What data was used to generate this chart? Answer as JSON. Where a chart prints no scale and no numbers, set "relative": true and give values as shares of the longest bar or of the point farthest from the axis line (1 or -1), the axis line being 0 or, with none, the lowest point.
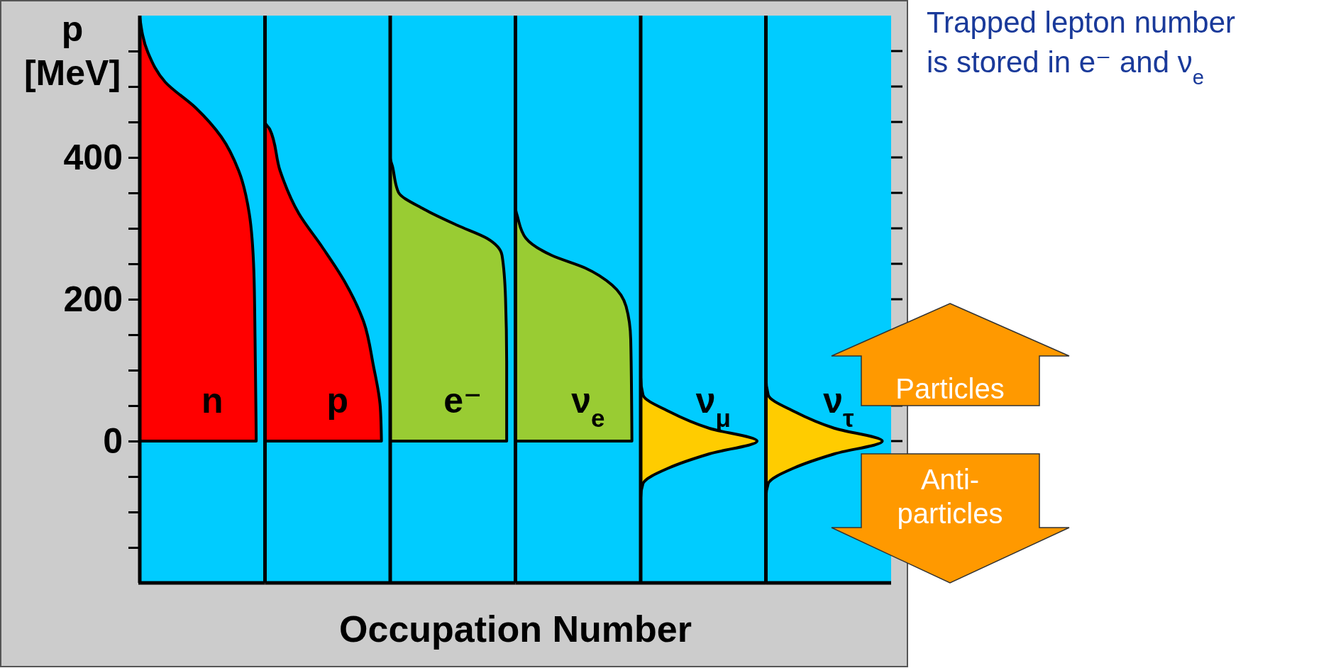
{
  "chart_data": [
    {
      "type": "area",
      "orientation": "horizontal",
      "relative": true,
      "title": "n",
      "xlabel": "Occupation Number",
      "ylabel": "p [MeV]",
      "ylim": [
        -200,
        600
      ],
      "color": "#ff0000",
      "yticks": [
        {
          "value": -150,
          "label": null
        },
        {
          "value": -100,
          "label": null
        },
        {
          "value": -50,
          "label": null
        },
        0,
        {
          "value": 50,
          "label": null
        },
        {
          "value": 100,
          "label": null
        },
        {
          "value": 150,
          "label": null
        },
        200,
        {
          "value": 250,
          "label": null
        },
        {
          "value": 300,
          "label": null
        },
        {
          "value": 350,
          "label": null
        },
        400,
        {
          "value": 450,
          "label": null
        },
        {
          "value": 500,
          "label": null
        },
        {
          "value": 550,
          "label": null
        }
      ],
      "x": [
        0,
        143,
        238,
        321,
        381,
        429,
        470,
        506,
        548,
        598
      ],
      "values": [
        1,
        0.99,
        0.98,
        0.94,
        0.85,
        0.7,
        0.48,
        0.22,
        0.07,
        0
      ]
    },
    {
      "type": "area",
      "orientation": "horizontal",
      "relative": true,
      "title": "p",
      "ylim": [
        -200,
        600
      ],
      "color": "#ff0000",
      "x": [
        0,
        48,
        107,
        167,
        226,
        274,
        321,
        381,
        440,
        450,
        598
      ],
      "values": [
        1,
        0.99,
        0.93,
        0.85,
        0.68,
        0.49,
        0.29,
        0.13,
        0.04,
        0,
        0
      ]
    },
    {
      "type": "area",
      "orientation": "horizontal",
      "relative": true,
      "title": "e⁻",
      "ylim": [
        -200,
        600
      ],
      "color": "#99cc33",
      "x": [
        0,
        107,
        202,
        262,
        286,
        304,
        327,
        351,
        387,
        400,
        598
      ],
      "values": [
        1,
        1,
        0.99,
        0.96,
        0.83,
        0.58,
        0.29,
        0.07,
        0.02,
        0,
        0
      ]
    },
    {
      "type": "area",
      "orientation": "horizontal",
      "relative": true,
      "title": "ν$_{e}$",
      "ylim": [
        -200,
        600
      ],
      "color": "#99cc33",
      "x": [
        0,
        143,
        190,
        220,
        244,
        262,
        286,
        315,
        330,
        598
      ],
      "values": [
        1,
        0.99,
        0.95,
        0.83,
        0.6,
        0.31,
        0.09,
        0.02,
        0,
        0
      ]
    },
    {
      "type": "area",
      "orientation": "horizontal",
      "relative": true,
      "title": "ν$_{μ}$",
      "ylim": [
        -200,
        600
      ],
      "color": "#ffcc00",
      "x": [
        -200,
        -80,
        -60,
        -38,
        -18,
        0,
        18,
        42,
        65,
        90,
        598
      ],
      "values": [
        0,
        0,
        0.02,
        0.24,
        0.59,
        1,
        0.59,
        0.24,
        0.02,
        0,
        0
      ]
    },
    {
      "type": "area",
      "orientation": "horizontal",
      "relative": true,
      "title": "ν$_{τ}$",
      "ylim": [
        -200,
        600
      ],
      "color": "#ffcc00",
      "annotations": [
        "Trapped lepton number is stored in e⁻ and ν$_{e}$",
        "Particles",
        "Anti-particles"
      ],
      "x": [
        -200,
        -80,
        -60,
        -38,
        -18,
        0,
        18,
        42,
        65,
        90,
        598
      ],
      "values": [
        0,
        0,
        0.02,
        0.24,
        0.59,
        1,
        0.59,
        0.24,
        0.02,
        0,
        0
      ]
    }
  ]
}
